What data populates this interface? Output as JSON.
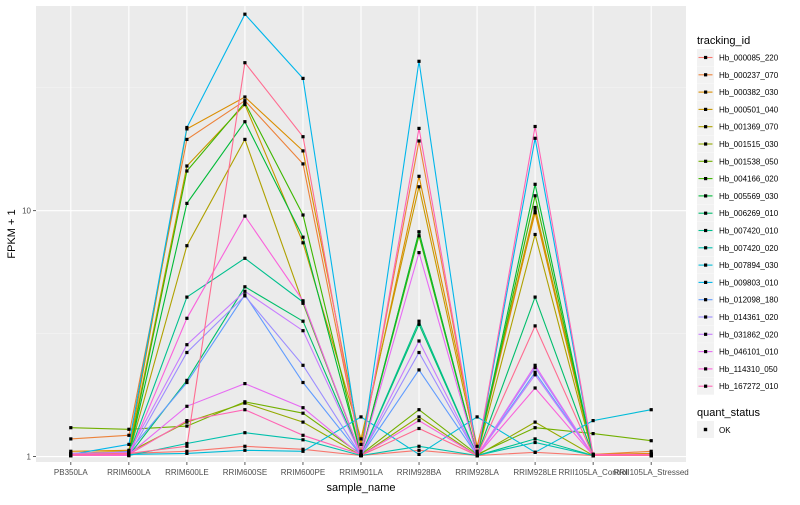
{
  "chart_data": {
    "type": "line",
    "xlabel": "sample_name",
    "ylabel": "FPKM + 1",
    "y_scale": "log10",
    "ylim": [
      0.95,
      68
    ],
    "y_ticks": [
      1,
      10
    ],
    "y_tick_labels": [
      "1",
      "10"
    ],
    "categories": [
      "PB350LA",
      "RRIM600LA",
      "RRIM600LE",
      "RRIM600SE",
      "RRIM600PE",
      "RRIM901LA",
      "RRIM928BA",
      "RRIM928LA",
      "RRIM928LE",
      "RRII105LA_Control",
      "RRII105LA_Stressed"
    ],
    "grid": true,
    "legend_placement": "right",
    "legend_title": "tracking_id",
    "legend2_title": "quant_status",
    "legend2_label": "OK",
    "series": [
      {
        "name": "Hb_000085_220",
        "color": "#F8766D",
        "values": [
          1.02,
          1.03,
          1.05,
          1.1,
          1.07,
          1.01,
          1.06,
          1.01,
          1.04,
          1.01,
          1.02
        ]
      },
      {
        "name": "Hb_000237_070",
        "color": "#EC8239",
        "values": [
          1.18,
          1.22,
          19.5,
          28.0,
          15.5,
          1.05,
          19.2,
          1.03,
          10.0,
          1.02,
          1.05
        ]
      },
      {
        "name": "Hb_000382_030",
        "color": "#DB8E00",
        "values": [
          1.05,
          1.06,
          21.5,
          29.0,
          17.5,
          1.12,
          13.8,
          1.1,
          9.8,
          1.02,
          1.03
        ]
      },
      {
        "name": "Hb_000501_040",
        "color": "#C79800",
        "values": [
          1.03,
          1.05,
          15.2,
          27.0,
          7.4,
          1.18,
          12.5,
          1.05,
          10.3,
          1.02,
          1.01
        ]
      },
      {
        "name": "Hb_001369_070",
        "color": "#AFA100",
        "values": [
          1.02,
          1.02,
          7.2,
          19.5,
          4.2,
          1.01,
          8.2,
          1.01,
          8.0,
          1.01,
          1.01
        ]
      },
      {
        "name": "Hb_001515_030",
        "color": "#94AA00",
        "values": [
          1.01,
          1.04,
          1.38,
          1.65,
          1.38,
          1.01,
          1.45,
          1.01,
          1.38,
          1.01,
          1.02
        ]
      },
      {
        "name": "Hb_001538_050",
        "color": "#72B000",
        "values": [
          1.31,
          1.29,
          1.33,
          1.67,
          1.5,
          1.02,
          1.55,
          1.02,
          1.31,
          1.24,
          1.16
        ]
      },
      {
        "name": "Hb_004166_020",
        "color": "#3DB700",
        "values": [
          1.01,
          1.02,
          14.5,
          27.5,
          9.6,
          1.01,
          7.9,
          1.01,
          11.5,
          1.01,
          1.01
        ]
      },
      {
        "name": "Hb_005569_030",
        "color": "#00BA38",
        "values": [
          1.02,
          1.02,
          10.7,
          23.0,
          7.8,
          1.01,
          8.2,
          1.01,
          12.8,
          1.01,
          1.01
        ]
      },
      {
        "name": "Hb_006269_010",
        "color": "#00BE6C",
        "values": [
          1.01,
          1.01,
          2.04,
          4.9,
          3.55,
          1.01,
          3.45,
          1.01,
          4.45,
          1.01,
          1.01
        ]
      },
      {
        "name": "Hb_007420_010",
        "color": "#00C08E",
        "values": [
          1.01,
          1.02,
          4.45,
          6.4,
          4.25,
          1.01,
          3.55,
          1.01,
          1.18,
          1.01,
          1.01
        ]
      },
      {
        "name": "Hb_007420_020",
        "color": "#00C0AC",
        "values": [
          1.01,
          1.01,
          1.13,
          1.25,
          1.17,
          1.01,
          1.1,
          1.01,
          1.14,
          1.01,
          1.01
        ]
      },
      {
        "name": "Hb_007894_030",
        "color": "#00BCD8",
        "values": [
          1.01,
          1.02,
          1.03,
          1.06,
          1.05,
          1.45,
          1.02,
          1.45,
          1.04,
          1.4,
          1.55
        ]
      },
      {
        "name": "Hb_009803_010",
        "color": "#00B6EB",
        "values": [
          1.02,
          1.12,
          21.8,
          63.0,
          34.5,
          1.01,
          40.5,
          1.01,
          19.7,
          1.01,
          1.01
        ]
      },
      {
        "name": "Hb_012098_180",
        "color": "#619CFF",
        "values": [
          1.01,
          1.05,
          2.0,
          4.55,
          2.0,
          1.01,
          2.25,
          1.01,
          2.2,
          1.01,
          1.01
        ]
      },
      {
        "name": "Hb_014361_020",
        "color": "#9C8DFF",
        "values": [
          1.01,
          1.01,
          2.65,
          4.5,
          2.35,
          1.01,
          2.65,
          1.01,
          2.3,
          1.01,
          1.01
        ]
      },
      {
        "name": "Hb_031862_020",
        "color": "#C77CFF",
        "values": [
          1.03,
          1.04,
          2.85,
          4.7,
          3.25,
          1.01,
          2.95,
          1.01,
          2.15,
          1.01,
          1.01
        ]
      },
      {
        "name": "Hb_046101_010",
        "color": "#E76BF3",
        "values": [
          1.02,
          1.02,
          1.6,
          1.98,
          1.58,
          1.01,
          6.75,
          1.01,
          2.35,
          1.01,
          1.01
        ]
      },
      {
        "name": "Hb_114310_050",
        "color": "#FA62DB",
        "values": [
          1.01,
          1.01,
          3.65,
          9.5,
          4.3,
          1.01,
          1.4,
          1.01,
          1.9,
          1.01,
          1.01
        ]
      },
      {
        "name": "Hb_167272_010",
        "color": "#FF65B5",
        "values": [
          1.01,
          1.02,
          1.4,
          1.55,
          1.22,
          1.02,
          21.6,
          1.02,
          22.0,
          1.02,
          1.02
        ]
      },
      {
        "name": "",
        "color": "#FF6C91",
        "values": [
          1.02,
          1.03,
          1.1,
          40.0,
          20.0,
          1.01,
          1.3,
          1.01,
          3.4,
          1.01,
          1.01
        ]
      }
    ]
  }
}
